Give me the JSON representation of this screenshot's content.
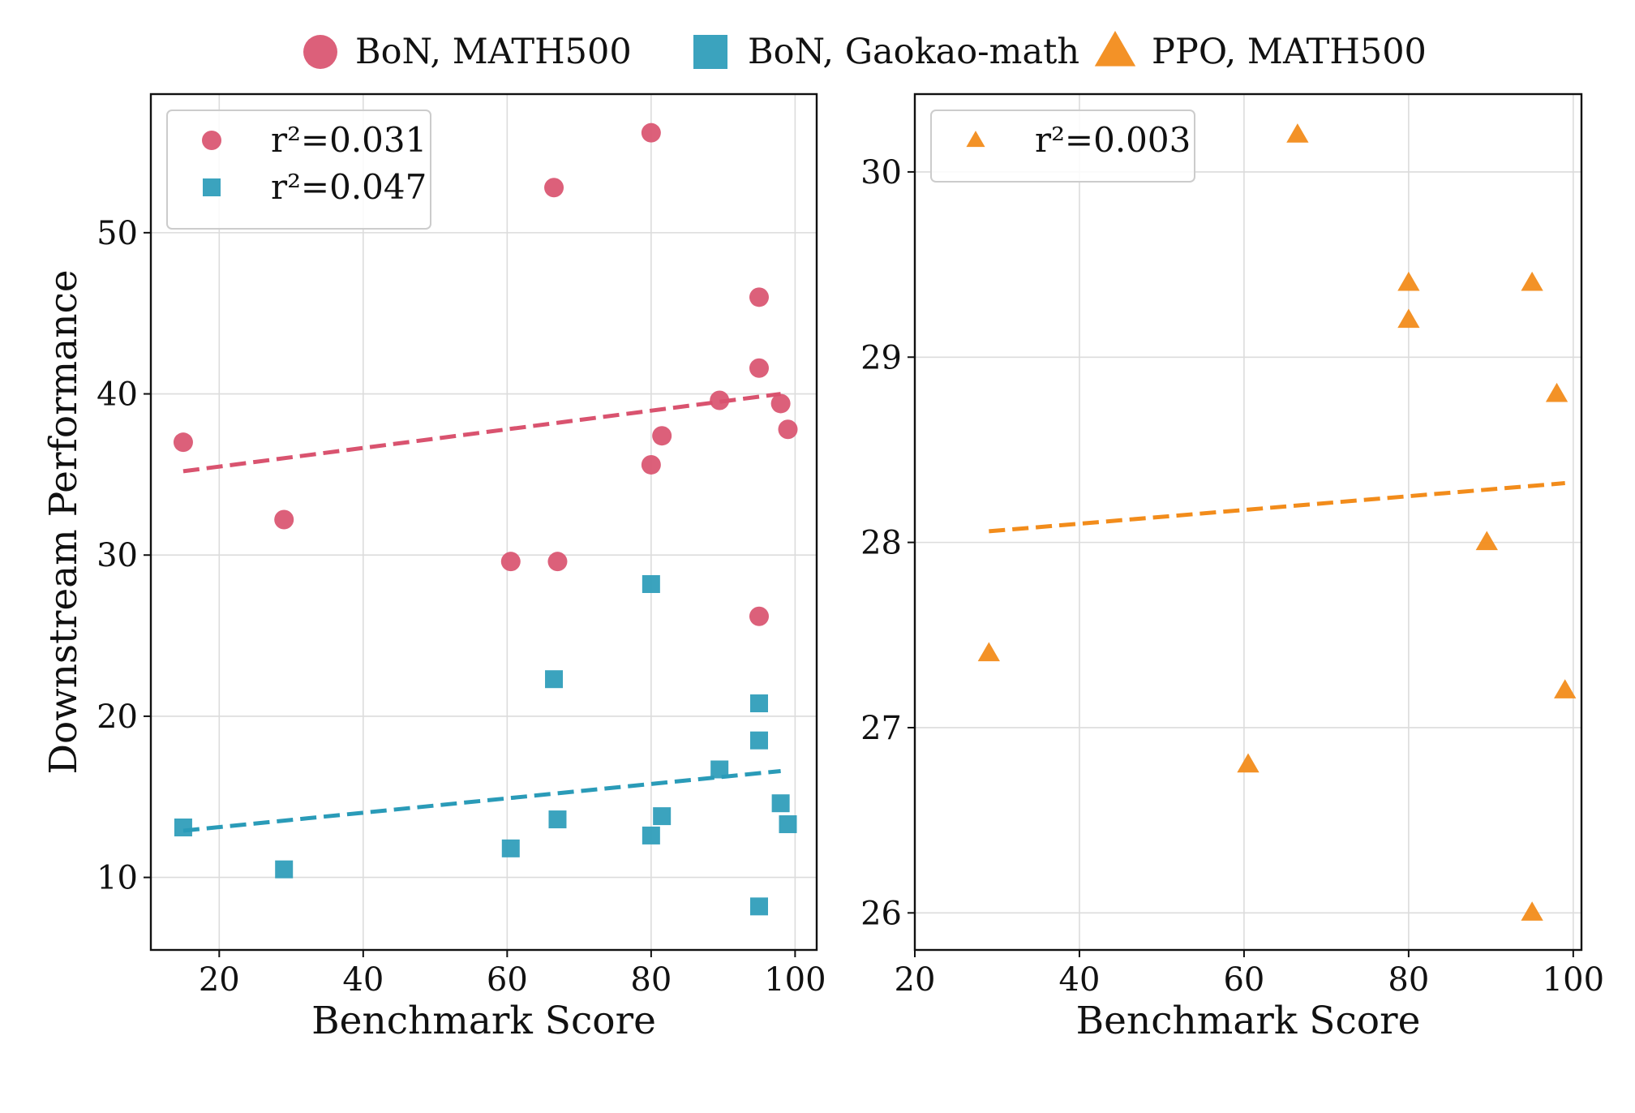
{
  "top_legend": [
    {
      "label": "BoN, MATH500",
      "shape": "circle",
      "color": "#d9536f"
    },
    {
      "label": "BoN, Gaokao-math",
      "shape": "square",
      "color": "#2a9bb8"
    },
    {
      "label": "PPO, MATH500",
      "shape": "triangle",
      "color": "#f28c1b"
    }
  ],
  "chart_data": [
    {
      "type": "scatter",
      "xlabel": "Benchmark Score",
      "ylabel": "Downstream Performance",
      "xlim": [
        10.5,
        103
      ],
      "ylim": [
        5.5,
        58.6
      ],
      "xticks": [
        20,
        40,
        60,
        80,
        100
      ],
      "yticks": [
        10,
        20,
        30,
        40,
        50
      ],
      "grid": true,
      "legend": "top-left",
      "series": [
        {
          "name": "BoN, MATH500",
          "shape": "circle",
          "color": "#d9536f",
          "legend_label": "r²=0.031",
          "x": [
            15,
            29,
            60.5,
            66.5,
            67,
            80,
            80,
            81.5,
            89.5,
            95,
            95,
            95,
            98,
            99
          ],
          "y": [
            37,
            32.2,
            29.6,
            52.8,
            29.6,
            56.2,
            35.6,
            37.4,
            39.6,
            46,
            41.6,
            26.2,
            39.4,
            37.8
          ],
          "fit": {
            "x": [
              15,
              98
            ],
            "y": [
              35.2,
              40
            ]
          }
        },
        {
          "name": "BoN, Gaokao-math",
          "shape": "square",
          "color": "#2a9bb8",
          "legend_label": "r²=0.047",
          "x": [
            15,
            29,
            60.5,
            66.5,
            67,
            80,
            80,
            81.5,
            89.5,
            95,
            95,
            95,
            98,
            99
          ],
          "y": [
            13.1,
            10.5,
            11.8,
            22.3,
            13.6,
            28.2,
            12.6,
            13.8,
            16.7,
            20.8,
            18.5,
            8.2,
            14.6,
            13.3
          ],
          "fit": {
            "x": [
              15,
              98
            ],
            "y": [
              12.9,
              16.6
            ]
          }
        }
      ]
    },
    {
      "type": "scatter",
      "xlabel": "Benchmark Score",
      "ylabel": "",
      "xlim": [
        20,
        101
      ],
      "ylim": [
        25.8,
        30.42
      ],
      "xticks": [
        20,
        40,
        60,
        80,
        100
      ],
      "yticks": [
        26,
        27,
        28,
        29,
        30
      ],
      "grid": true,
      "legend": "top-left",
      "series": [
        {
          "name": "PPO, MATH500",
          "shape": "triangle",
          "color": "#f28c1b",
          "legend_label": "r²=0.003",
          "x": [
            29,
            60.5,
            66.5,
            80,
            80,
            89.5,
            95,
            95,
            98,
            99
          ],
          "y": [
            27.4,
            26.8,
            30.2,
            29.4,
            29.2,
            28,
            29.4,
            26,
            28.8,
            27.2
          ],
          "fit": {
            "x": [
              29,
              99
            ],
            "y": [
              28.06,
              28.32
            ]
          }
        }
      ]
    }
  ]
}
